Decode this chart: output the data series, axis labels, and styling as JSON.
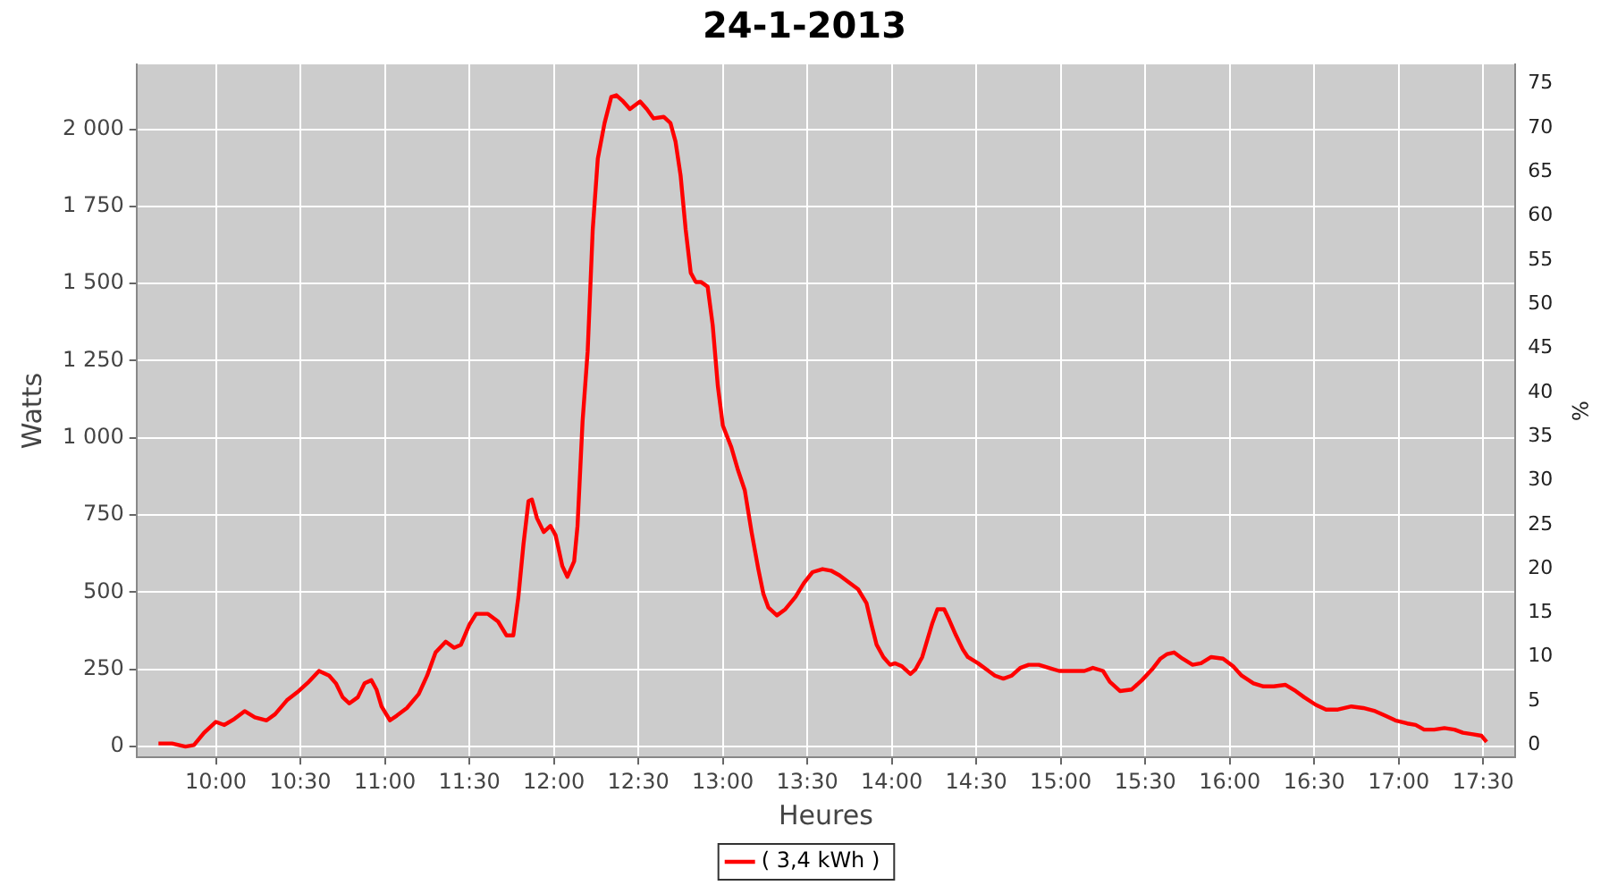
{
  "chart_data": {
    "type": "line",
    "title": "24-1-2013",
    "xlabel": "Heures",
    "ylabel": "Watts",
    "y2label": "%",
    "x": [
      9.66,
      9.74,
      9.82,
      9.87,
      9.93,
      10.0,
      10.05,
      10.11,
      10.17,
      10.23,
      10.3,
      10.35,
      10.42,
      10.49,
      10.55,
      10.61,
      10.67,
      10.71,
      10.75,
      10.79,
      10.84,
      10.88,
      10.92,
      10.95,
      10.98,
      11.03,
      11.07,
      11.13,
      11.2,
      11.25,
      11.3,
      11.36,
      11.41,
      11.45,
      11.5,
      11.54,
      11.61,
      11.67,
      11.72,
      11.76,
      11.79,
      11.82,
      11.85,
      11.87,
      11.9,
      11.94,
      11.98,
      12.01,
      12.05,
      12.08,
      12.12,
      12.14,
      12.17,
      12.2,
      12.23,
      12.26,
      12.3,
      12.34,
      12.37,
      12.41,
      12.45,
      12.51,
      12.55,
      12.59,
      12.65,
      12.69,
      12.72,
      12.75,
      12.78,
      12.81,
      12.84,
      12.87,
      12.91,
      12.94,
      12.97,
      13.0,
      13.05,
      13.09,
      13.13,
      13.17,
      13.21,
      13.24,
      13.27,
      13.32,
      13.37,
      13.43,
      13.48,
      13.53,
      13.59,
      13.64,
      13.69,
      13.75,
      13.8,
      13.85,
      13.88,
      13.91,
      13.95,
      13.99,
      14.02,
      14.06,
      14.11,
      14.14,
      14.18,
      14.21,
      14.24,
      14.27,
      14.31,
      14.34,
      14.38,
      14.42,
      14.45,
      14.51,
      14.56,
      14.61,
      14.66,
      14.71,
      14.76,
      14.81,
      14.87,
      14.93,
      14.99,
      15.08,
      15.14,
      15.19,
      15.25,
      15.29,
      15.35,
      15.42,
      15.48,
      15.54,
      15.59,
      15.63,
      15.67,
      15.72,
      15.78,
      15.83,
      15.89,
      15.96,
      16.02,
      16.07,
      16.14,
      16.2,
      16.26,
      16.33,
      16.39,
      16.44,
      16.51,
      16.57,
      16.64,
      16.72,
      16.79,
      16.86,
      16.92,
      16.98,
      17.05,
      17.1,
      17.15,
      17.21,
      17.27,
      17.33,
      17.38,
      17.44,
      17.49,
      17.52
    ],
    "series": [
      {
        "name": "( 3,4 kWh )",
        "color": "#ff0000",
        "values": [
          10,
          10,
          0,
          5,
          45,
          80,
          70,
          90,
          115,
          95,
          85,
          105,
          150,
          180,
          210,
          245,
          230,
          205,
          160,
          140,
          160,
          205,
          215,
          185,
          130,
          85,
          100,
          125,
          170,
          230,
          305,
          340,
          320,
          330,
          395,
          430,
          430,
          405,
          360,
          360,
          485,
          655,
          795,
          800,
          740,
          695,
          715,
          685,
          585,
          550,
          600,
          715,
          1055,
          1280,
          1675,
          1905,
          2020,
          2105,
          2110,
          2090,
          2065,
          2090,
          2065,
          2035,
          2040,
          2020,
          1960,
          1850,
          1675,
          1535,
          1505,
          1505,
          1490,
          1365,
          1170,
          1040,
          970,
          895,
          830,
          695,
          575,
          495,
          450,
          425,
          445,
          485,
          530,
          565,
          575,
          570,
          555,
          530,
          510,
          465,
          395,
          330,
          290,
          265,
          270,
          260,
          235,
          250,
          290,
          345,
          400,
          445,
          445,
          410,
          360,
          315,
          290,
          270,
          250,
          230,
          220,
          230,
          255,
          265,
          265,
          255,
          245,
          245,
          245,
          255,
          245,
          210,
          180,
          185,
          215,
          250,
          285,
          300,
          305,
          285,
          265,
          270,
          290,
          285,
          260,
          230,
          205,
          195,
          195,
          200,
          180,
          160,
          135,
          120,
          120,
          130,
          125,
          115,
          100,
          85,
          75,
          70,
          55,
          55,
          60,
          55,
          45,
          40,
          35,
          15
        ]
      }
    ],
    "xlim": [
      9.53,
      17.69
    ],
    "xticks": [
      {
        "value": 10,
        "label": "10:00"
      },
      {
        "value": 10.5,
        "label": "10:30"
      },
      {
        "value": 11,
        "label": "11:00"
      },
      {
        "value": 11.5,
        "label": "11:30"
      },
      {
        "value": 12,
        "label": "12:00"
      },
      {
        "value": 12.5,
        "label": "12:30"
      },
      {
        "value": 13,
        "label": "13:00"
      },
      {
        "value": 13.5,
        "label": "13:30"
      },
      {
        "value": 14,
        "label": "14:00"
      },
      {
        "value": 14.5,
        "label": "14:30"
      },
      {
        "value": 15,
        "label": "15:00"
      },
      {
        "value": 15.5,
        "label": "15:30"
      },
      {
        "value": 16,
        "label": "16:00"
      },
      {
        "value": 16.5,
        "label": "16:30"
      },
      {
        "value": 17,
        "label": "17:00"
      },
      {
        "value": 17.5,
        "label": "17:30"
      }
    ],
    "ylim": [
      -35,
      2210
    ],
    "yticks": [
      0,
      250,
      500,
      750,
      {
        "value": 1000,
        "label": "1 000"
      },
      {
        "value": 1250,
        "label": "1 250"
      },
      {
        "value": 1500,
        "label": "1 500"
      },
      {
        "value": 1750,
        "label": "1 750"
      },
      {
        "value": 2000,
        "label": "2 000"
      }
    ],
    "y2lim": [
      -1.4,
      77.2
    ],
    "y2ticks": [
      0,
      5,
      10,
      15,
      20,
      25,
      30,
      35,
      40,
      45,
      50,
      55,
      60,
      65,
      70,
      75
    ],
    "grid": true,
    "legend": "bottom",
    "marker": "none",
    "line_style": "solid"
  }
}
